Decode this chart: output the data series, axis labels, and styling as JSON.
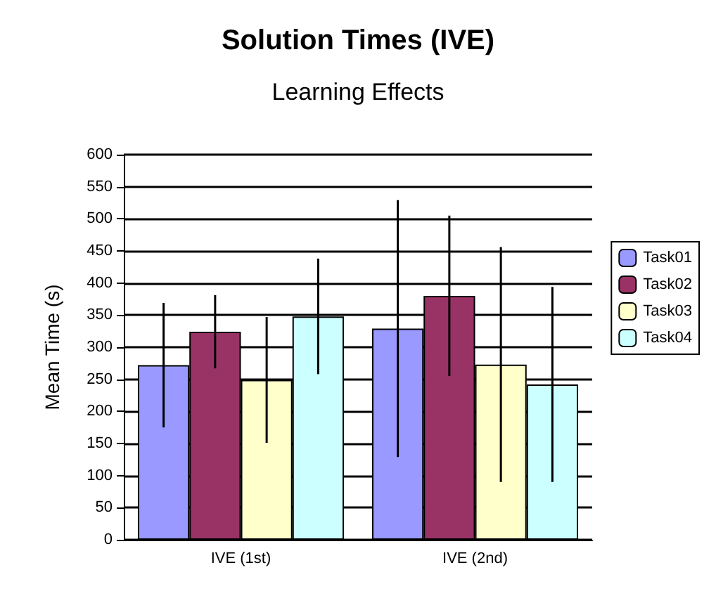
{
  "chart_data": {
    "type": "bar",
    "title": "Solution Times (IVE)",
    "subtitle": "Learning Effects",
    "ylabel": "Mean Time (s)",
    "categories": [
      "IVE (1st)",
      "IVE (2nd)"
    ],
    "series": [
      {
        "name": "Task01",
        "color": "#9999ff",
        "values": [
          272,
          329
        ],
        "errors": [
          97,
          200
        ]
      },
      {
        "name": "Task02",
        "color": "#993366",
        "values": [
          324,
          380
        ],
        "errors": [
          57,
          125
        ]
      },
      {
        "name": "Task03",
        "color": "#ffffcc",
        "values": [
          249,
          273
        ],
        "errors": [
          98,
          183
        ]
      },
      {
        "name": "Task04",
        "color": "#ccffff",
        "values": [
          348,
          242
        ],
        "errors": [
          90,
          152
        ]
      }
    ],
    "ylim": [
      0,
      600
    ],
    "yticks": [
      0,
      50,
      100,
      150,
      200,
      250,
      300,
      350,
      400,
      450,
      500,
      550,
      600
    ],
    "grid": "y",
    "legend": "right"
  }
}
